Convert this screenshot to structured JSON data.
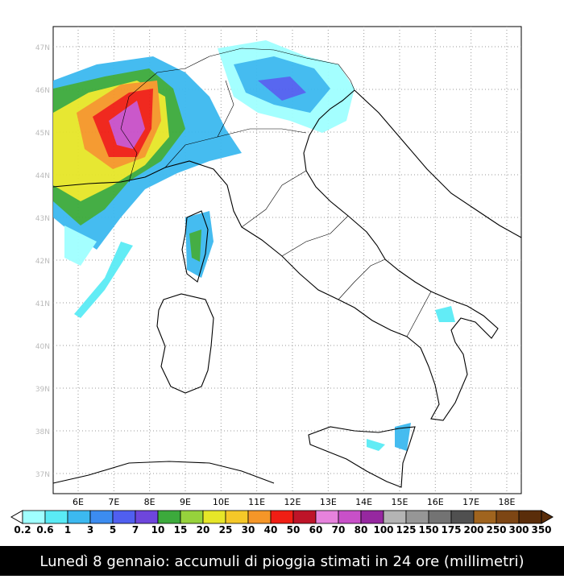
{
  "map": {
    "lat_labels": [
      "47N",
      "46N",
      "45N",
      "44N",
      "43N",
      "42N",
      "41N",
      "40N",
      "39N",
      "38N",
      "37N"
    ],
    "lon_labels": [
      "6E",
      "7E",
      "8E",
      "9E",
      "10E",
      "11E",
      "12E",
      "13E",
      "14E",
      "15E",
      "16E",
      "17E",
      "18E"
    ]
  },
  "colorbar": {
    "labels": [
      "0.2",
      "0.6",
      "1",
      "3",
      "5",
      "7",
      "10",
      "15",
      "20",
      "25",
      "30",
      "40",
      "50",
      "60",
      "70",
      "80",
      "100",
      "125",
      "150",
      "175",
      "200",
      "250",
      "300",
      "350"
    ],
    "colors": [
      "#a0ffff",
      "#5aebf5",
      "#3cb9f0",
      "#3c8cf0",
      "#505ff0",
      "#6e46dc",
      "#3caa3c",
      "#96d23c",
      "#e6e628",
      "#f5c828",
      "#f59628",
      "#f01e14",
      "#be1428",
      "#e682dc",
      "#c850c8",
      "#9628a0",
      "#b4b4b4",
      "#969696",
      "#737373",
      "#505050",
      "#a0641e",
      "#7d4614",
      "#5a2d0a"
    ]
  },
  "caption": "Lunedì 8 gennaio: accumuli di pioggia stimati in 24 ore (millimetri)"
}
